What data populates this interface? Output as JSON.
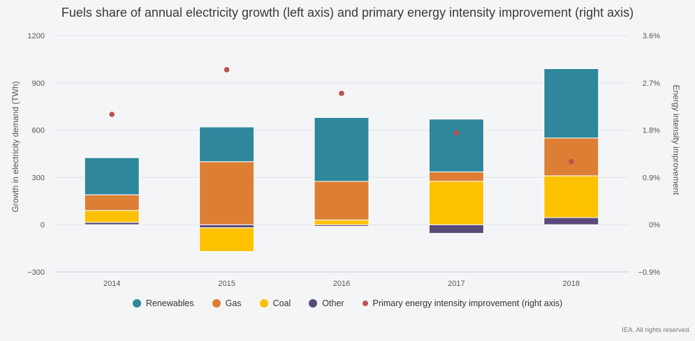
{
  "title": "Fuels share of annual electricity growth (left axis) and primary energy intensity improvement (right axis)",
  "credit": "IEA. All rights reserved.",
  "chart_data": {
    "type": "bar",
    "stacked": true,
    "categories": [
      "2014",
      "2015",
      "2016",
      "2017",
      "2018"
    ],
    "series": [
      {
        "name": "Renewables",
        "color": "#2e879b",
        "values": [
          235,
          220,
          405,
          335,
          440
        ]
      },
      {
        "name": "Gas",
        "color": "#dc7f35",
        "values": [
          100,
          400,
          245,
          60,
          240
        ]
      },
      {
        "name": "Coal",
        "color": "#fec100",
        "values": [
          75,
          -150,
          30,
          275,
          265
        ]
      },
      {
        "name": "Other",
        "color": "#5a4a7a",
        "values": [
          15,
          -20,
          -10,
          -55,
          45
        ]
      }
    ],
    "line_series": {
      "name": "Primary energy intensity improvement (right axis)",
      "color": "#c0504d",
      "axis": "right",
      "values": [
        2.1,
        2.95,
        2.5,
        1.75,
        1.2
      ]
    },
    "ylabel": "Growth in electricity demand (TWh)",
    "y2label": "Energy intensity improvement",
    "ylim": [
      -300,
      1200
    ],
    "y2lim": [
      -0.9,
      3.6
    ],
    "yticks": [
      "1200",
      "900",
      "600",
      "300",
      "0",
      "−300"
    ],
    "y2ticks": [
      "3.6%",
      "2.7%",
      "1.8%",
      "0.9%",
      "0%",
      "−0.9%"
    ],
    "grid": true,
    "legend_position": "bottom"
  }
}
